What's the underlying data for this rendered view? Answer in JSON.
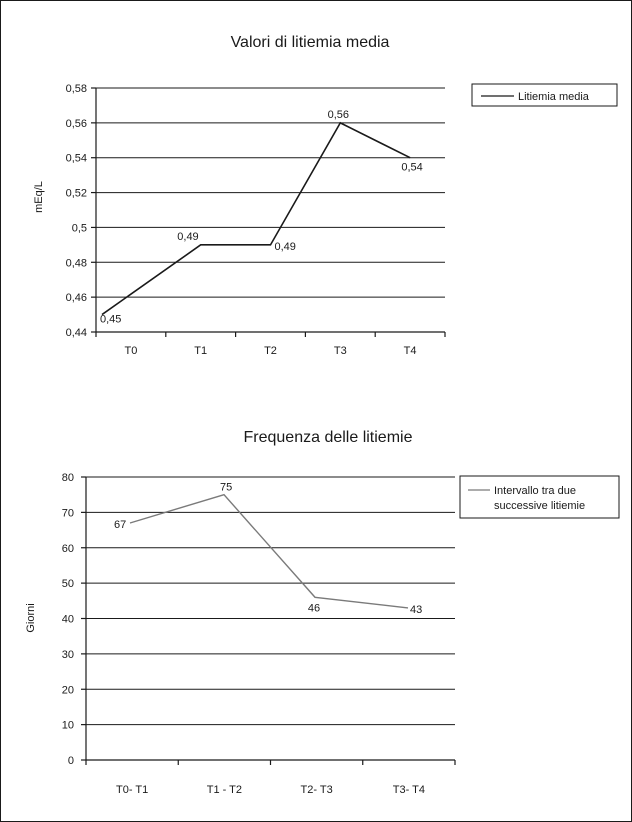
{
  "chart_data": [
    {
      "type": "line",
      "title": "Valori di litiemia media",
      "xlabel": "",
      "ylabel": "mEq/L",
      "categories": [
        "T0",
        "T1",
        "T2",
        "T3",
        "T4"
      ],
      "ylim": [
        0.44,
        0.58
      ],
      "yticks": [
        "0,58",
        "0,56",
        "0,54",
        "0,52",
        "0,5",
        "0,48",
        "0,46",
        "0,44"
      ],
      "grid": true,
      "legend_position": "top-right",
      "color": "#1a1a1a",
      "series": [
        {
          "name": "Litiemia media",
          "values": [
            0.45,
            0.49,
            0.49,
            0.56,
            0.54
          ],
          "labels": [
            "0,45",
            "0,49",
            "0,49",
            "0,56",
            "0,54"
          ]
        }
      ]
    },
    {
      "type": "line",
      "title": "Frequenza delle litiemie",
      "xlabel": "",
      "ylabel": "Giorni",
      "categories": [
        "T0- T1",
        "T1 - T2",
        "T2- T3",
        "T3- T4"
      ],
      "ylim": [
        0,
        80
      ],
      "yticks": [
        "80",
        "70",
        "60",
        "50",
        "40",
        "30",
        "20",
        "10",
        "0"
      ],
      "grid": true,
      "legend_position": "top-right",
      "color": "#7a7a7a",
      "series": [
        {
          "name": "Intervallo tra due successive litiemie",
          "name_lines": [
            "Intervallo tra due",
            "successive litiemie"
          ],
          "values": [
            67,
            75,
            46,
            43
          ],
          "labels": [
            "67",
            "75",
            "46",
            "43"
          ]
        }
      ]
    }
  ]
}
